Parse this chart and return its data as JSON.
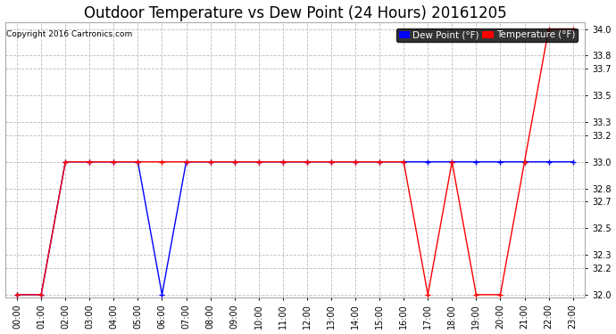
{
  "title": "Outdoor Temperature vs Dew Point (24 Hours) 20161205",
  "copyright": "Copyright 2016 Cartronics.com",
  "x_labels": [
    "00:00",
    "01:00",
    "02:00",
    "03:00",
    "04:00",
    "05:00",
    "06:00",
    "07:00",
    "08:00",
    "09:00",
    "10:00",
    "11:00",
    "12:00",
    "13:00",
    "14:00",
    "15:00",
    "16:00",
    "17:00",
    "18:00",
    "19:00",
    "20:00",
    "21:00",
    "22:00",
    "23:00"
  ],
  "temperature": [
    32.0,
    32.0,
    33.0,
    33.0,
    33.0,
    33.0,
    33.0,
    33.0,
    33.0,
    33.0,
    33.0,
    33.0,
    33.0,
    33.0,
    33.0,
    33.0,
    33.0,
    32.0,
    33.0,
    32.0,
    32.0,
    33.0,
    34.0,
    34.0
  ],
  "dew_point": [
    32.0,
    32.0,
    33.0,
    33.0,
    33.0,
    33.0,
    32.0,
    33.0,
    33.0,
    33.0,
    33.0,
    33.0,
    33.0,
    33.0,
    33.0,
    33.0,
    33.0,
    33.0,
    33.0,
    33.0,
    33.0,
    33.0,
    33.0,
    33.0
  ],
  "temp_color": "#ff0000",
  "dew_color": "#0000ff",
  "ylim_min": 32.0,
  "ylim_max": 34.0,
  "yticks": [
    32.0,
    32.2,
    32.3,
    32.5,
    32.7,
    32.8,
    33.0,
    33.2,
    33.3,
    33.5,
    33.7,
    33.8,
    34.0
  ],
  "bg_color": "#ffffff",
  "grid_color": "#bbbbbb",
  "title_fontsize": 12,
  "label_fontsize": 7,
  "tick_fontsize": 7,
  "legend_dew_label": "Dew Point (°F)",
  "legend_temp_label": "Temperature (°F)"
}
